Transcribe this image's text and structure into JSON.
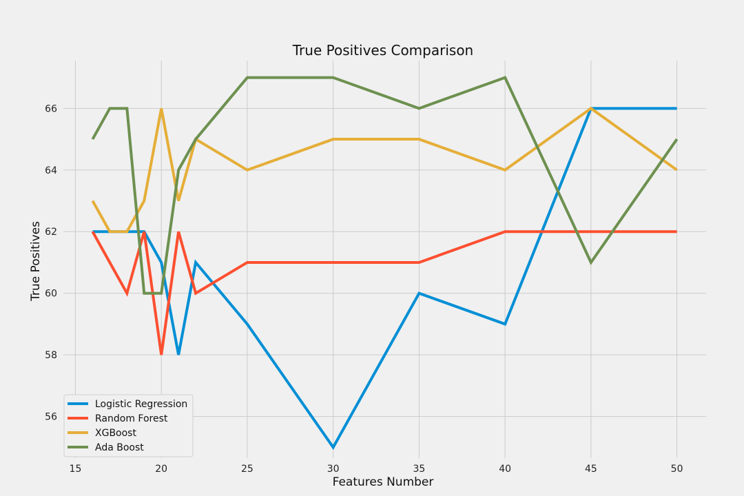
{
  "chart_data": {
    "type": "line",
    "title": "True Positives Comparison",
    "xlabel": "Features Number",
    "ylabel": "True Positives",
    "x": [
      16,
      17,
      18,
      19,
      20,
      21,
      22,
      25,
      30,
      35,
      40,
      45,
      50
    ],
    "xlim": [
      14.3,
      51.7
    ],
    "ylim": [
      54.65,
      67.55
    ],
    "xticks": [
      15,
      20,
      25,
      30,
      35,
      40,
      45,
      50
    ],
    "yticks": [
      56,
      58,
      60,
      62,
      64,
      66
    ],
    "grid": true,
    "legend_position": "lower-left",
    "series": [
      {
        "name": "Logistic Regression",
        "color": "#008fd5",
        "values": [
          62,
          62,
          62,
          62,
          61,
          58,
          61,
          59,
          55,
          60,
          59,
          66,
          66
        ]
      },
      {
        "name": "Random Forest",
        "color": "#fc4f30",
        "values": [
          62,
          61,
          60,
          62,
          58,
          62,
          60,
          61,
          61,
          61,
          62,
          62,
          62
        ]
      },
      {
        "name": "XGBoost",
        "color": "#e5ae38",
        "values": [
          63,
          62,
          62,
          63,
          66,
          63,
          65,
          64,
          65,
          65,
          64,
          66,
          64
        ]
      },
      {
        "name": "Ada Boost",
        "color": "#6d904f",
        "values": [
          65,
          66,
          66,
          60,
          60,
          64,
          65,
          67,
          67,
          66,
          67,
          61,
          65
        ]
      }
    ]
  }
}
